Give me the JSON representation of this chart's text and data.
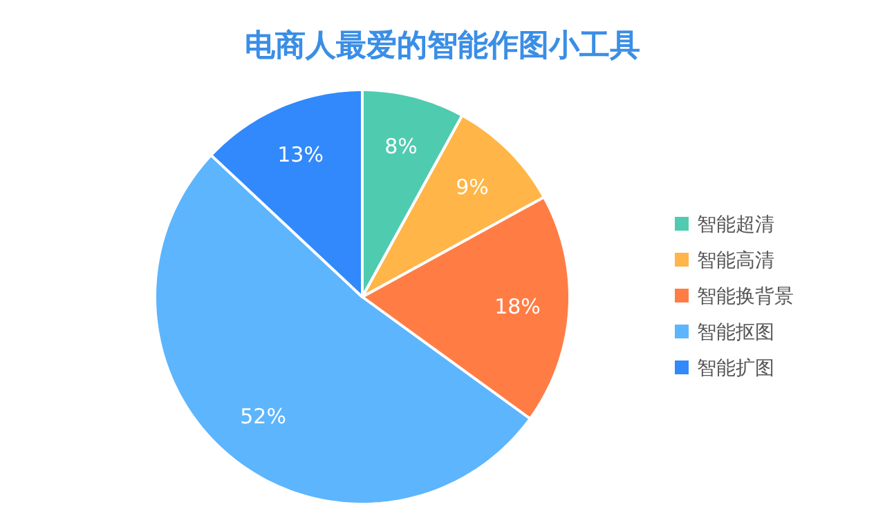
{
  "chart_data": {
    "type": "pie",
    "title": "电商人最爱的智能作图小工具",
    "categories": [
      "智能超清",
      "智能高清",
      "智能换背景",
      "智能抠图",
      "智能扩图"
    ],
    "values": [
      8,
      9,
      18,
      52,
      13
    ],
    "colors": [
      "#4fcbb0",
      "#ffb547",
      "#ff7d45",
      "#5cb5fd",
      "#3189fb"
    ],
    "value_labels": [
      "8%",
      "9%",
      "18%",
      "52%",
      "13%"
    ],
    "legend": "right"
  }
}
